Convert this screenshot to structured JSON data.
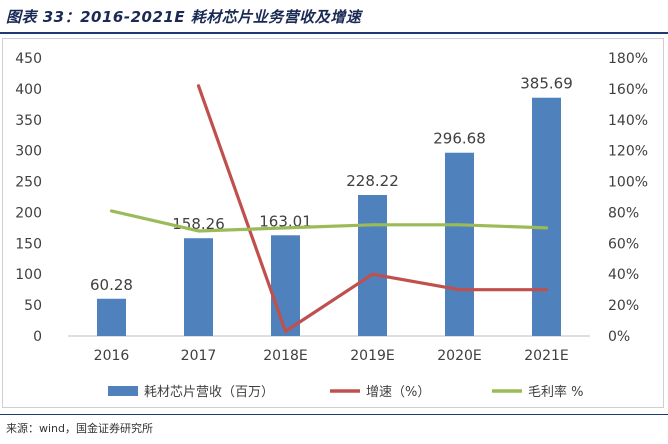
{
  "title": "图表 33：2016-2021E 耗材芯片业务营收及增速",
  "source": "来源：wind，国金证券研究所",
  "chart_data": {
    "type": "bar+line",
    "categories": [
      "2016",
      "2017",
      "2018E",
      "2019E",
      "2020E",
      "2021E"
    ],
    "series": [
      {
        "name": "耗材芯片营收（百万）",
        "type": "bar",
        "axis": "left",
        "color": "#4f81bd",
        "values": [
          60.28,
          158.26,
          163.01,
          228.22,
          296.68,
          385.69
        ],
        "labels": [
          "60.28",
          "158.26",
          "163.01",
          "228.22",
          "296.68",
          "385.69"
        ]
      },
      {
        "name": "增速（%）",
        "type": "line",
        "axis": "right",
        "color": "#c0504d",
        "values": [
          null,
          162,
          3,
          40,
          30,
          30
        ]
      },
      {
        "name": "毛利率 %",
        "type": "line",
        "axis": "right",
        "color": "#9bbb59",
        "values": [
          81,
          68,
          70,
          72,
          72,
          70
        ]
      }
    ],
    "y_left": {
      "min": 0,
      "max": 450,
      "step": 50,
      "ticks": [
        "0",
        "50",
        "100",
        "150",
        "200",
        "250",
        "300",
        "350",
        "400",
        "450"
      ]
    },
    "y_right": {
      "min": 0,
      "max": 180,
      "step": 20,
      "ticks": [
        "0%",
        "20%",
        "40%",
        "60%",
        "80%",
        "100%",
        "120%",
        "140%",
        "160%",
        "180%"
      ]
    },
    "legend_position": "bottom",
    "grid": false
  }
}
